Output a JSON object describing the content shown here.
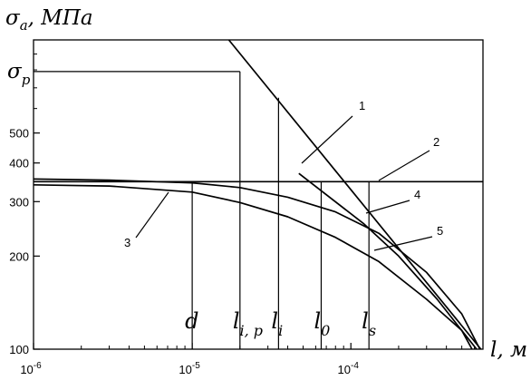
{
  "chart_data": {
    "type": "line",
    "xscale": "log",
    "yscale": "log",
    "xlim": [
      1e-06,
      0.00068
    ],
    "ylim": [
      100,
      1000
    ],
    "grid": false,
    "legend": "none",
    "ylabel": {
      "sym": "σ",
      "sub": "a",
      "unit": ", МПа"
    },
    "xlabel": {
      "sym": "l",
      "unit": ", м"
    },
    "y_special_label": {
      "sym": "σ",
      "sub": "p",
      "value": 790
    },
    "xticks": [
      {
        "value": 1e-06,
        "base": "10",
        "exp": "-6"
      },
      {
        "value": 1e-05,
        "base": "10",
        "exp": "-5"
      },
      {
        "value": 0.0001,
        "base": "10",
        "exp": "-4"
      }
    ],
    "yticks": [
      {
        "value": 100,
        "label": "100"
      },
      {
        "value": 200,
        "label": "200"
      },
      {
        "value": 300,
        "label": "300"
      },
      {
        "value": 400,
        "label": "400"
      },
      {
        "value": 500,
        "label": "500"
      }
    ],
    "series": [
      {
        "name": "1",
        "x": [
          1.7e-05,
          0.00066
        ],
        "y": [
          1000,
          100
        ]
      },
      {
        "name": "2",
        "x": [
          1e-06,
          0.00068
        ],
        "y": [
          348,
          348
        ]
      },
      {
        "name": "3",
        "x": [
          1e-06,
          3e-06,
          1e-05,
          2e-05,
          4e-05,
          8e-05,
          0.00015,
          0.0003,
          0.0005,
          0.00058
        ],
        "y": [
          340,
          337,
          322,
          298,
          268,
          230,
          192,
          145,
          115,
          100
        ]
      },
      {
        "name": "4",
        "x": [
          4.7e-05,
          0.00012,
          0.0002,
          0.00035,
          0.00052,
          0.00062
        ],
        "y": [
          370,
          255,
          200,
          145,
          112,
          100
        ]
      },
      {
        "name": "5",
        "x": [
          1e-06,
          3e-06,
          1e-05,
          2e-05,
          4e-05,
          8e-05,
          0.00015,
          0.0003,
          0.0005,
          0.00065
        ],
        "y": [
          355,
          352,
          345,
          333,
          310,
          278,
          237,
          177,
          130,
          100
        ]
      }
    ],
    "curve_labels": [
      {
        "text": "1"
      },
      {
        "text": "2"
      },
      {
        "text": "3"
      },
      {
        "text": "4"
      },
      {
        "text": "5"
      }
    ],
    "markers": [
      {
        "sym": "d",
        "sub": "",
        "x": 1e-05,
        "y_top": 348
      },
      {
        "sym": "l",
        "sub": "i, p",
        "x": 2e-05,
        "y_top": 790
      },
      {
        "sym": "l",
        "sub": "i",
        "x": 3.5e-05,
        "y_top": 650
      },
      {
        "sym": "l",
        "sub": "0",
        "x": 6.5e-05,
        "y_top": 348
      },
      {
        "sym": "l",
        "sub": "s",
        "x": 0.00013,
        "y_top": 348
      }
    ]
  }
}
